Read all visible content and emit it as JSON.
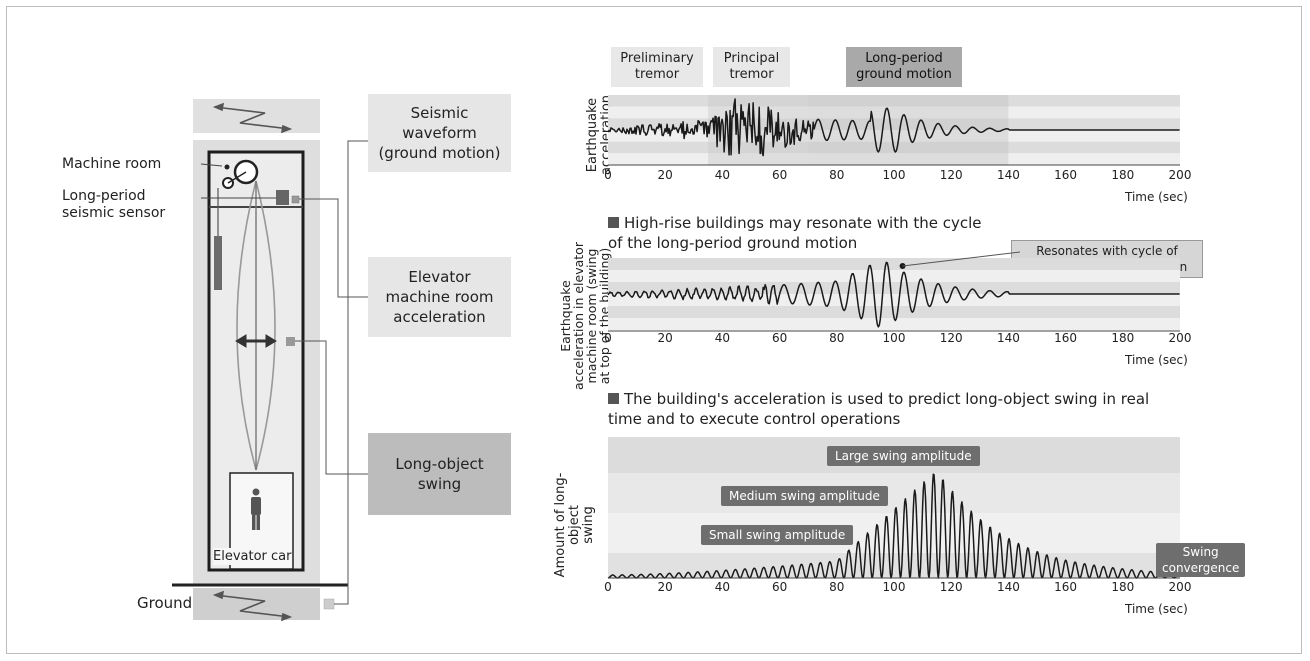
{
  "left": {
    "machine_room": "Machine room",
    "sensor": "Long-period\nseismic sensor",
    "elevator_car": "Elevator car",
    "ground": "Ground"
  },
  "boxes": {
    "seismic": "Seismic\nwaveform\n(ground motion)",
    "machine": "Elevator\nmachine room\nacceleration",
    "swing": "Long-object\nswing"
  },
  "chart1": {
    "phases": [
      "Preliminary\ntremor",
      "Principal\ntremor",
      "Long-period\nground motion"
    ],
    "ylabel": "Earthquake\nacceleration",
    "xlabel": "Time (sec)"
  },
  "chart2": {
    "note": "High-rise buildings may resonate with the cycle\nof the long-period ground motion",
    "callout": "Resonates with cycle of\nlong-period ground motion",
    "ylabel": "Earthquake\nacceleration in elevator\nmachine room (swing\nat top of the building)",
    "xlabel": "Time (sec)"
  },
  "chart3": {
    "note": "The building's acceleration is used to predict long-object swing in real\ntime and to execute control operations",
    "amp_large": "Large swing amplitude",
    "amp_medium": "Medium swing amplitude",
    "amp_small": "Small swing amplitude",
    "convergence": "Swing\nconvergence",
    "ylabel": "Amount of long-object\nswing",
    "xlabel": "Time (sec)"
  },
  "x_ticks": [
    "0",
    "20",
    "40",
    "60",
    "80",
    "100",
    "120",
    "140",
    "160",
    "180",
    "200"
  ],
  "chart_data": [
    {
      "type": "line",
      "ylabel": "Earthquake acceleration",
      "xlabel": "Time (sec)",
      "xlim": [
        0,
        200
      ],
      "x_ticks": [
        0,
        20,
        40,
        60,
        80,
        100,
        120,
        140,
        160,
        180,
        200
      ],
      "annotations": [
        "Preliminary tremor",
        "Principal tremor",
        "Long-period ground motion"
      ],
      "phase_ranges_sec": {
        "preliminary": [
          0,
          35
        ],
        "principal": [
          35,
          70
        ],
        "long_period": [
          70,
          140
        ]
      },
      "peak_period_window_sec": [
        95,
        110
      ],
      "signal_ends_sec": 140
    },
    {
      "type": "line",
      "ylabel": "Earthquake acceleration in elevator machine room (swing at top of the building)",
      "xlabel": "Time (sec)",
      "xlim": [
        0,
        200
      ],
      "x_ticks": [
        0,
        20,
        40,
        60,
        80,
        100,
        120,
        140,
        160,
        180,
        200
      ],
      "annotations": [
        "Resonates with cycle of long-period ground motion"
      ],
      "resonance_peak_sec": 96,
      "signal_ends_sec": 140
    },
    {
      "type": "line",
      "ylabel": "Amount of long-object swing",
      "xlabel": "Time (sec)",
      "xlim": [
        0,
        200
      ],
      "x_ticks": [
        0,
        20,
        40,
        60,
        80,
        100,
        120,
        140,
        160,
        180,
        200
      ],
      "bands": [
        "Small swing amplitude",
        "Medium swing amplitude",
        "Large swing amplitude"
      ],
      "peak_swing_sec": 115,
      "convergence_label": "Swing convergence"
    }
  ]
}
